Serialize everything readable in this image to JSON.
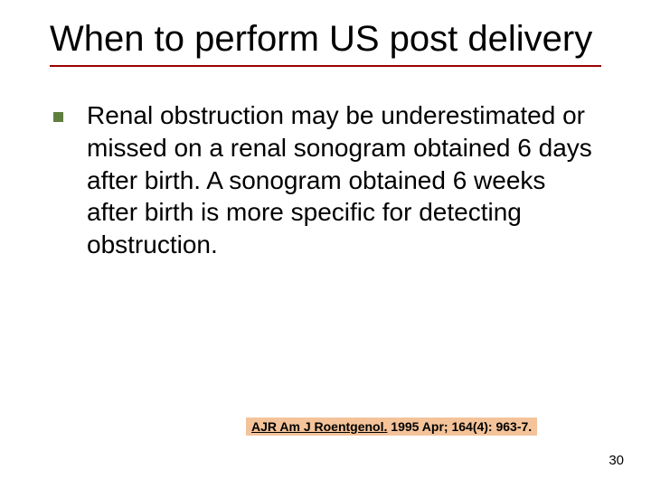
{
  "colors": {
    "underline": "#9a0000",
    "bullet": "#5f7f3f",
    "citation_bg": "#f4c39a"
  },
  "title": "When to perform US post delivery",
  "body": "Renal obstruction may be underestimated or missed on a renal sonogram obtained 6 days after birth. A sonogram obtained 6 weeks after birth is more specific for detecting obstruction.",
  "citation": {
    "journal": "AJR Am J Roentgenol.",
    "rest": " 1995 Apr; 164(4): 963-7."
  },
  "page_number": "30"
}
